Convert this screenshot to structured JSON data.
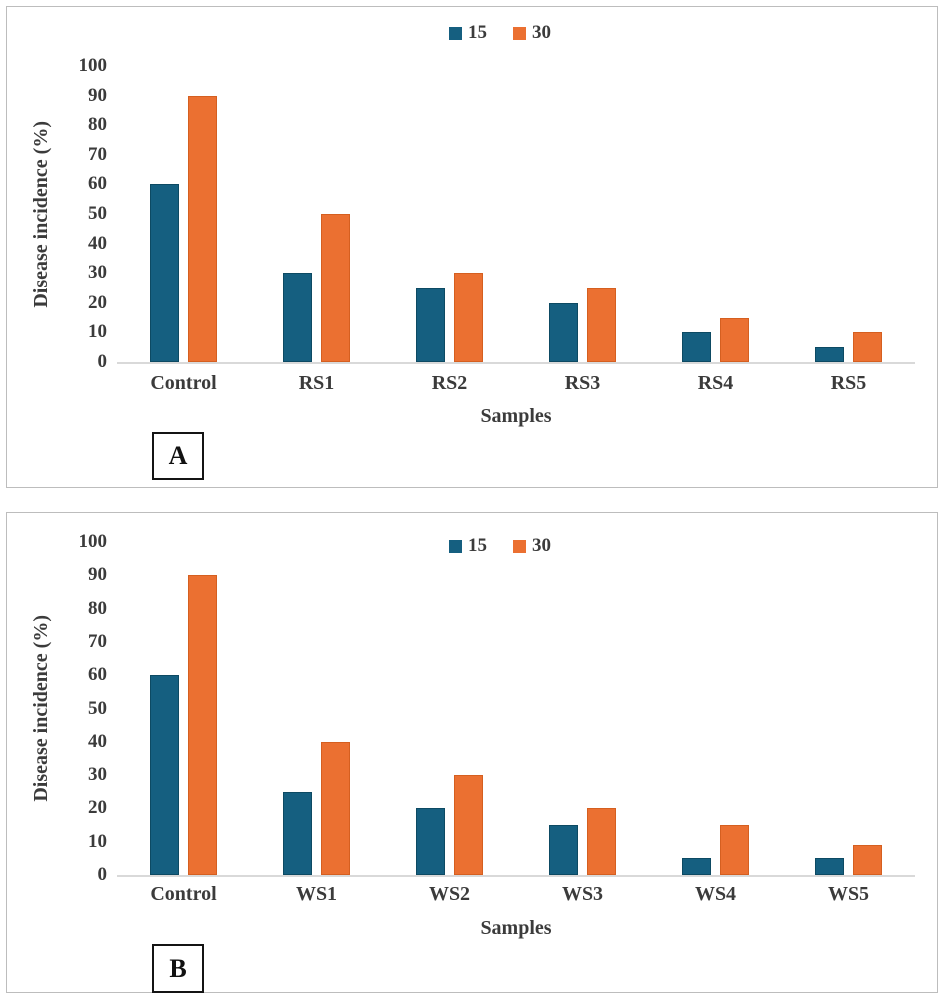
{
  "chart_data": [
    {
      "panel_label": "A",
      "type": "bar",
      "categories": [
        "Control",
        "RS1",
        "RS2",
        "RS3",
        "RS4",
        "RS5"
      ],
      "series": [
        {
          "name": "15",
          "color": "#155F80",
          "border_color": "#0d4a63",
          "values": [
            60,
            30,
            25,
            20,
            10,
            5
          ]
        },
        {
          "name": "30",
          "color": "#EB7031",
          "border_color": "#d55f20",
          "values": [
            90,
            50,
            30,
            25,
            15,
            10
          ]
        }
      ],
      "xlabel": "Samples",
      "ylabel": "Disease incidence (%)",
      "ylim": [
        0,
        100
      ],
      "ytick_step": 10,
      "legend_position": "top-center",
      "grid": false
    },
    {
      "panel_label": "B",
      "type": "bar",
      "categories": [
        "Control",
        "WS1",
        "WS2",
        "WS3",
        "WS4",
        "WS5"
      ],
      "series": [
        {
          "name": "15",
          "color": "#155F80",
          "border_color": "#0d4a63",
          "values": [
            60,
            25,
            20,
            15,
            5,
            5
          ]
        },
        {
          "name": "30",
          "color": "#EB7031",
          "border_color": "#d55f20",
          "values": [
            90,
            40,
            30,
            20,
            15,
            9
          ]
        }
      ],
      "xlabel": "Samples",
      "ylabel": "Disease incidence (%)",
      "ylim": [
        0,
        100
      ],
      "ytick_step": 10,
      "legend_position": "top-center",
      "grid": false
    }
  ]
}
